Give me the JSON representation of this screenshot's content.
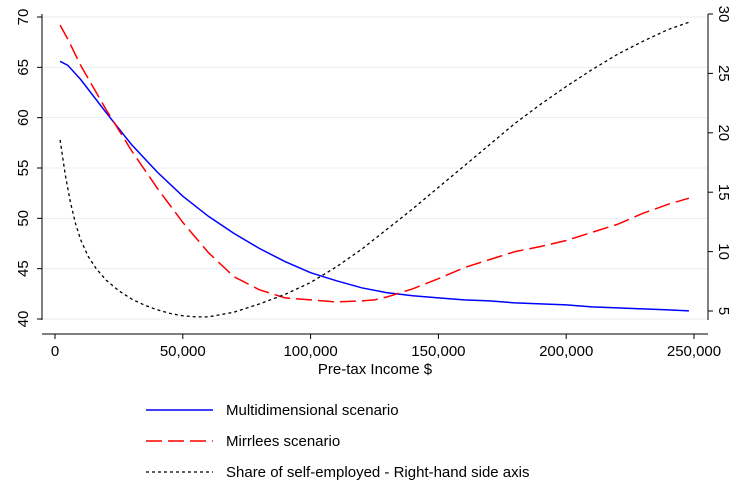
{
  "chart_data": {
    "type": "line",
    "xlabel": "Pre-tax Income $",
    "ylabel": "",
    "y2label": "",
    "xlim": [
      0,
      250000
    ],
    "ylim": [
      40,
      70
    ],
    "y2lim": [
      5,
      30
    ],
    "grid": "horizontal",
    "legend_position": "bottom",
    "x_ticks": [
      0,
      50000,
      100000,
      150000,
      200000,
      250000
    ],
    "x_tick_labels": [
      "0",
      "50,000",
      "100,000",
      "150,000",
      "200,000",
      "250,000"
    ],
    "y_ticks": [
      40,
      45,
      50,
      55,
      60,
      65,
      70
    ],
    "y_tick_labels": [
      "40",
      "45",
      "50",
      "55",
      "60",
      "65",
      "70"
    ],
    "y2_ticks": [
      5,
      10,
      15,
      20,
      25,
      30
    ],
    "y2_tick_labels": [
      "5",
      "10",
      "15",
      "20",
      "25",
      "30"
    ],
    "series": [
      {
        "name": "Multidimensional scenario",
        "axis": "left",
        "color": "#0000ff",
        "dash": "solid",
        "x": [
          2000,
          5000,
          10000,
          20000,
          30000,
          40000,
          50000,
          60000,
          70000,
          80000,
          90000,
          100000,
          110000,
          120000,
          130000,
          140000,
          150000,
          160000,
          170000,
          180000,
          190000,
          200000,
          210000,
          220000,
          230000,
          240000,
          248000
        ],
        "y": [
          65.6,
          65.2,
          63.8,
          60.5,
          57.3,
          54.6,
          52.2,
          50.2,
          48.5,
          47.0,
          45.7,
          44.6,
          43.8,
          43.1,
          42.6,
          42.3,
          42.1,
          41.9,
          41.8,
          41.6,
          41.5,
          41.4,
          41.2,
          41.1,
          41.0,
          40.9,
          40.8
        ]
      },
      {
        "name": "Mirrlees scenario",
        "axis": "left",
        "color": "#ff0000",
        "dash": "long-dash",
        "x": [
          2000,
          5000,
          10000,
          20000,
          30000,
          40000,
          50000,
          60000,
          70000,
          80000,
          90000,
          100000,
          110000,
          120000,
          125000,
          130000,
          140000,
          150000,
          160000,
          170000,
          180000,
          190000,
          200000,
          210000,
          220000,
          230000,
          240000,
          248000
        ],
        "y": [
          69.2,
          67.8,
          65.2,
          60.8,
          56.7,
          53.0,
          49.6,
          46.6,
          44.2,
          42.9,
          42.1,
          41.9,
          41.7,
          41.8,
          41.9,
          42.2,
          43.0,
          44.0,
          45.1,
          45.9,
          46.7,
          47.2,
          47.8,
          48.6,
          49.4,
          50.5,
          51.4,
          52.0
        ]
      },
      {
        "name": "Share of self-employed - Right-hand side axis",
        "axis": "right",
        "color": "#000000",
        "dash": "short-dash",
        "x": [
          2000,
          4000,
          6000,
          8000,
          10000,
          13000,
          16000,
          20000,
          25000,
          30000,
          35000,
          40000,
          45000,
          50000,
          55000,
          60000,
          70000,
          80000,
          90000,
          100000,
          110000,
          120000,
          130000,
          140000,
          150000,
          160000,
          170000,
          180000,
          190000,
          200000,
          210000,
          220000,
          230000,
          240000,
          248000
        ],
        "y": [
          19.4,
          16.5,
          14.2,
          12.4,
          11.0,
          9.6,
          8.6,
          7.6,
          6.7,
          6.0,
          5.5,
          5.1,
          4.8,
          4.6,
          4.5,
          4.5,
          4.9,
          5.6,
          6.4,
          7.4,
          8.7,
          10.2,
          11.9,
          13.6,
          15.4,
          17.2,
          19.0,
          20.8,
          22.4,
          23.9,
          25.3,
          26.6,
          27.7,
          28.7,
          29.3
        ]
      }
    ]
  }
}
